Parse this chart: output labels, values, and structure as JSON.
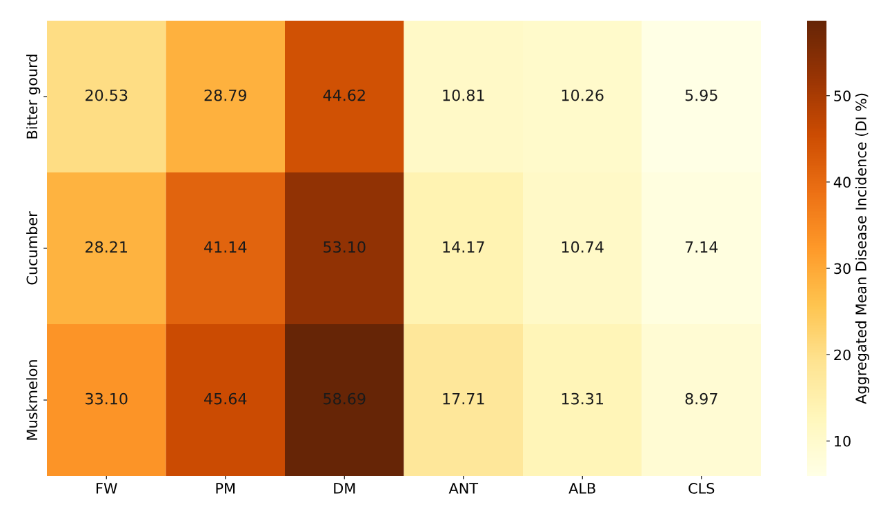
{
  "chart_data": {
    "type": "heatmap",
    "categories": [
      "FW",
      "PM",
      "DM",
      "ANT",
      "ALB",
      "CLS"
    ],
    "y_categories": [
      "Bitter gourd",
      "Cucumber",
      "Muskmelon"
    ],
    "cells": [
      [
        20.53,
        28.79,
        44.62,
        10.81,
        10.26,
        5.95
      ],
      [
        28.21,
        41.14,
        53.1,
        14.17,
        10.74,
        7.14
      ],
      [
        33.1,
        45.64,
        58.69,
        17.71,
        13.31,
        8.97
      ]
    ],
    "cell_labels": [
      [
        "20.53",
        "28.79",
        "44.62",
        "10.81",
        "10.26",
        "5.95"
      ],
      [
        "28.21",
        "41.14",
        "53.10",
        "14.17",
        "10.74",
        "7.14"
      ],
      [
        "33.10",
        "45.64",
        "58.69",
        "17.71",
        "13.31",
        "8.97"
      ]
    ],
    "clabel": "Aggregated Mean Disease Incidence (DI %)",
    "clim": [
      5.95,
      58.69
    ],
    "cticks": [
      10,
      20,
      30,
      40,
      50
    ]
  }
}
